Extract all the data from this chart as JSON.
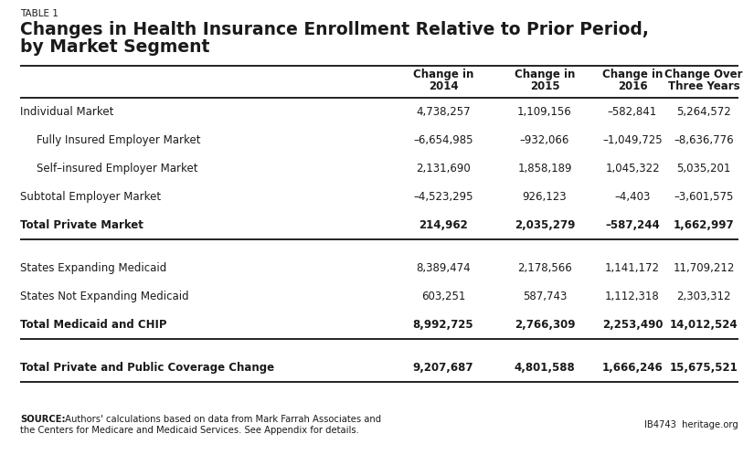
{
  "table_label": "TABLE 1",
  "title_line1": "Changes in Health Insurance Enrollment Relative to Prior Period,",
  "title_line2": "by Market Segment",
  "col_headers": [
    "",
    "Change in\n2014",
    "Change in\n2015",
    "Change in\n2016",
    "Change Over\nThree Years"
  ],
  "rows": [
    {
      "label": "Individual Market",
      "vals": [
        "4,738,257",
        "1,109,156",
        "–582,841",
        "5,264,572"
      ],
      "bold": false,
      "indent": false,
      "spacer": false,
      "line_below": false
    },
    {
      "label": "Fully Insured Employer Market",
      "vals": [
        "–6,654,985",
        "–932,066",
        "–1,049,725",
        "–8,636,776"
      ],
      "bold": false,
      "indent": true,
      "spacer": false,
      "line_below": false
    },
    {
      "label": "Self–insured Employer Market",
      "vals": [
        "2,131,690",
        "1,858,189",
        "1,045,322",
        "5,035,201"
      ],
      "bold": false,
      "indent": true,
      "spacer": false,
      "line_below": false
    },
    {
      "label": "Subtotal Employer Market",
      "vals": [
        "–4,523,295",
        "926,123",
        "–4,403",
        "–3,601,575"
      ],
      "bold": false,
      "indent": false,
      "spacer": false,
      "line_below": false
    },
    {
      "label": "Total Private Market",
      "vals": [
        "214,962",
        "2,035,279",
        "–587,244",
        "1,662,997"
      ],
      "bold": true,
      "indent": false,
      "spacer": false,
      "line_below": true
    },
    {
      "label": "",
      "vals": [
        "",
        "",
        "",
        ""
      ],
      "bold": false,
      "indent": false,
      "spacer": true,
      "line_below": false
    },
    {
      "label": "States Expanding Medicaid",
      "vals": [
        "8,389,474",
        "2,178,566",
        "1,141,172",
        "11,709,212"
      ],
      "bold": false,
      "indent": false,
      "spacer": false,
      "line_below": false
    },
    {
      "label": "States Not Expanding Medicaid",
      "vals": [
        "603,251",
        "587,743",
        "1,112,318",
        "2,303,312"
      ],
      "bold": false,
      "indent": false,
      "spacer": false,
      "line_below": false
    },
    {
      "label": "Total Medicaid and CHIP",
      "vals": [
        "8,992,725",
        "2,766,309",
        "2,253,490",
        "14,012,524"
      ],
      "bold": true,
      "indent": false,
      "spacer": false,
      "line_below": true
    },
    {
      "label": "",
      "vals": [
        "",
        "",
        "",
        ""
      ],
      "bold": false,
      "indent": false,
      "spacer": true,
      "line_below": false
    },
    {
      "label": "Total Private and Public Coverage Change",
      "vals": [
        "9,207,687",
        "4,801,588",
        "1,666,246",
        "15,675,521"
      ],
      "bold": true,
      "indent": false,
      "spacer": false,
      "line_below": true
    }
  ],
  "source_bold": "SOURCE:",
  "source_rest": " Authors' calculations based on data from Mark Farrah Associates and",
  "source_line2": "the Centers for Medicare and Medicaid Services. See Appendix for details.",
  "footer_right": "IB4743  heritage.org",
  "bg_color": "#ffffff",
  "text_color": "#1a1a1a",
  "line_color": "#222222"
}
